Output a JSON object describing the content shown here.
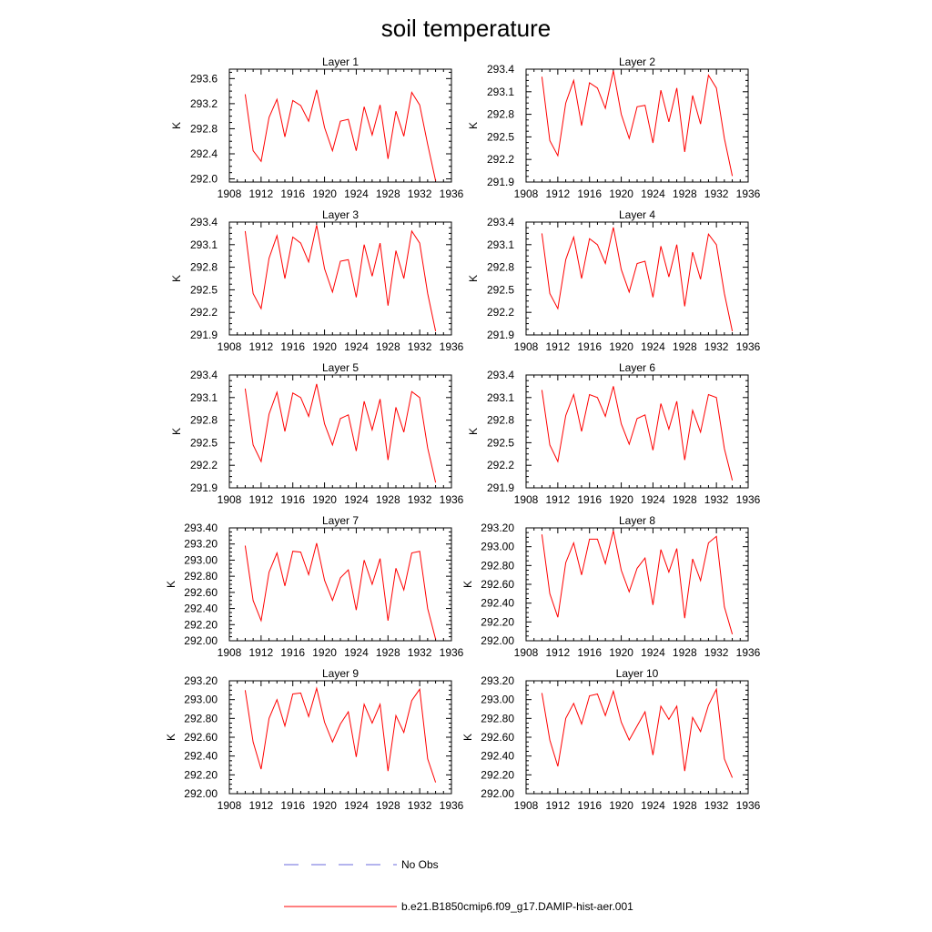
{
  "chart_data": {
    "type": "line",
    "title": "soil temperature",
    "x_ticks": [
      1908,
      1912,
      1916,
      1920,
      1924,
      1928,
      1932,
      1936
    ],
    "xlim": [
      1908,
      1936
    ],
    "legend": [
      {
        "label": "No Obs",
        "color": "#6a6add",
        "style": "dashed"
      },
      {
        "label": "b.e21.B1850cmip6.f09_g17.DAMIP-hist-aer.001",
        "color": "#ff0000",
        "style": "solid"
      }
    ],
    "x": [
      1910,
      1911,
      1912,
      1913,
      1914,
      1915,
      1916,
      1917,
      1918,
      1919,
      1920,
      1921,
      1922,
      1923,
      1924,
      1925,
      1926,
      1927,
      1928,
      1929,
      1930,
      1931,
      1932,
      1933,
      1934
    ],
    "panels": [
      {
        "title": "Layer 1",
        "ylabel": "K",
        "ylim": [
          291.95,
          293.75
        ],
        "yticks": [
          "292.0",
          "292.4",
          "292.8",
          "293.2",
          "293.6"
        ],
        "ytick_values": [
          292.0,
          292.4,
          292.8,
          293.2,
          293.6
        ],
        "values": [
          293.35,
          292.45,
          292.28,
          292.98,
          293.27,
          292.67,
          293.25,
          293.17,
          292.92,
          293.42,
          292.82,
          292.45,
          292.92,
          292.95,
          292.45,
          293.15,
          292.7,
          293.18,
          292.32,
          293.08,
          292.68,
          293.38,
          293.18,
          292.55,
          291.97
        ]
      },
      {
        "title": "Layer 2",
        "ylabel": "K",
        "ylim": [
          291.9,
          293.4
        ],
        "yticks": [
          "291.9",
          "292.2",
          "292.5",
          "292.8",
          "293.1",
          "293.4"
        ],
        "ytick_values": [
          291.9,
          292.2,
          292.5,
          292.8,
          293.1,
          293.4
        ],
        "values": [
          293.3,
          292.45,
          292.25,
          292.95,
          293.25,
          292.65,
          293.22,
          293.15,
          292.88,
          293.38,
          292.8,
          292.48,
          292.9,
          292.92,
          292.42,
          293.12,
          292.7,
          293.15,
          292.3,
          293.05,
          292.67,
          293.32,
          293.15,
          292.48,
          291.98
        ]
      },
      {
        "title": "Layer 3",
        "ylabel": "K",
        "ylim": [
          291.9,
          293.4
        ],
        "yticks": [
          "291.9",
          "292.2",
          "292.5",
          "292.8",
          "293.1",
          "293.4"
        ],
        "ytick_values": [
          291.9,
          292.2,
          292.5,
          292.8,
          293.1,
          293.4
        ],
        "values": [
          293.28,
          292.45,
          292.25,
          292.92,
          293.22,
          292.65,
          293.2,
          293.12,
          292.87,
          293.36,
          292.78,
          292.47,
          292.88,
          292.9,
          292.4,
          293.1,
          292.68,
          293.12,
          292.29,
          293.02,
          292.65,
          293.28,
          293.12,
          292.45,
          291.95
        ]
      },
      {
        "title": "Layer 4",
        "ylabel": "K",
        "ylim": [
          291.9,
          293.4
        ],
        "yticks": [
          "291.9",
          "292.2",
          "292.5",
          "292.8",
          "293.1",
          "293.4"
        ],
        "ytick_values": [
          291.9,
          292.2,
          292.5,
          292.8,
          293.1,
          293.4
        ],
        "values": [
          293.25,
          292.45,
          292.25,
          292.9,
          293.2,
          292.65,
          293.18,
          293.1,
          292.85,
          293.33,
          292.77,
          292.47,
          292.85,
          292.88,
          292.4,
          293.08,
          292.67,
          293.1,
          292.28,
          293.0,
          292.64,
          293.24,
          293.1,
          292.45,
          291.95
        ]
      },
      {
        "title": "Layer 5",
        "ylabel": "K",
        "ylim": [
          291.9,
          293.4
        ],
        "yticks": [
          "291.9",
          "292.2",
          "292.5",
          "292.8",
          "293.1",
          "293.4"
        ],
        "ytick_values": [
          291.9,
          292.2,
          292.5,
          292.8,
          293.1,
          293.4
        ],
        "values": [
          293.22,
          292.47,
          292.25,
          292.88,
          293.17,
          292.65,
          293.16,
          293.1,
          292.85,
          293.28,
          292.75,
          292.47,
          292.82,
          292.87,
          292.39,
          293.05,
          292.67,
          293.08,
          292.27,
          292.97,
          292.64,
          293.18,
          293.1,
          292.43,
          291.97
        ]
      },
      {
        "title": "Layer 6",
        "ylabel": "K",
        "ylim": [
          291.9,
          293.4
        ],
        "yticks": [
          "291.9",
          "292.2",
          "292.5",
          "292.8",
          "293.1",
          "293.4"
        ],
        "ytick_values": [
          291.9,
          292.2,
          292.5,
          292.8,
          293.1,
          293.4
        ],
        "values": [
          293.2,
          292.47,
          292.25,
          292.86,
          293.14,
          292.65,
          293.14,
          293.1,
          292.85,
          293.25,
          292.75,
          292.48,
          292.82,
          292.87,
          292.4,
          293.02,
          292.68,
          293.05,
          292.27,
          292.93,
          292.64,
          293.14,
          293.1,
          292.42,
          292.0
        ]
      },
      {
        "title": "Layer 7",
        "ylabel": "K",
        "ylim": [
          292.0,
          293.4
        ],
        "yticks": [
          "292.00",
          "292.20",
          "292.40",
          "292.60",
          "292.80",
          "293.00",
          "293.20",
          "293.40"
        ],
        "ytick_values": [
          292.0,
          292.2,
          292.4,
          292.6,
          292.8,
          293.0,
          293.2,
          293.4
        ],
        "values": [
          293.18,
          292.5,
          292.25,
          292.85,
          293.09,
          292.68,
          293.11,
          293.1,
          292.82,
          293.21,
          292.75,
          292.5,
          292.78,
          292.88,
          292.38,
          293.0,
          292.7,
          293.02,
          292.25,
          292.9,
          292.63,
          293.09,
          293.11,
          292.4,
          292.02
        ]
      },
      {
        "title": "Layer 8",
        "ylabel": "K",
        "ylim": [
          292.0,
          293.2
        ],
        "yticks": [
          "292.00",
          "292.20",
          "292.40",
          "292.60",
          "292.80",
          "293.00",
          "293.20"
        ],
        "ytick_values": [
          292.0,
          292.2,
          292.4,
          292.6,
          292.8,
          293.0,
          293.2
        ],
        "values": [
          293.13,
          292.5,
          292.25,
          292.83,
          293.04,
          292.7,
          293.08,
          293.08,
          292.82,
          293.17,
          292.75,
          292.52,
          292.77,
          292.88,
          292.38,
          292.97,
          292.73,
          292.98,
          292.24,
          292.87,
          292.64,
          293.04,
          293.11,
          292.36,
          292.07
        ]
      },
      {
        "title": "Layer 9",
        "ylabel": "K",
        "ylim": [
          292.0,
          293.2
        ],
        "yticks": [
          "292.00",
          "292.20",
          "292.40",
          "292.60",
          "292.80",
          "293.00",
          "293.20"
        ],
        "ytick_values": [
          292.0,
          292.2,
          292.4,
          292.6,
          292.8,
          293.0,
          293.2
        ],
        "values": [
          293.1,
          292.55,
          292.26,
          292.8,
          293.0,
          292.72,
          293.06,
          293.07,
          292.82,
          293.12,
          292.76,
          292.55,
          292.74,
          292.87,
          292.39,
          292.95,
          292.75,
          292.95,
          292.24,
          292.83,
          292.65,
          292.99,
          293.11,
          292.37,
          292.12
        ]
      },
      {
        "title": "Layer 10",
        "ylabel": "K",
        "ylim": [
          292.0,
          293.2
        ],
        "yticks": [
          "292.00",
          "292.20",
          "292.40",
          "292.60",
          "292.80",
          "293.00",
          "293.20"
        ],
        "ytick_values": [
          292.0,
          292.2,
          292.4,
          292.6,
          292.8,
          293.0,
          293.2
        ],
        "values": [
          293.07,
          292.57,
          292.29,
          292.8,
          292.96,
          292.74,
          293.04,
          293.06,
          292.83,
          293.09,
          292.76,
          292.57,
          292.72,
          292.87,
          292.41,
          292.93,
          292.79,
          292.93,
          292.24,
          292.81,
          292.66,
          292.94,
          293.11,
          292.37,
          292.17
        ]
      }
    ]
  }
}
